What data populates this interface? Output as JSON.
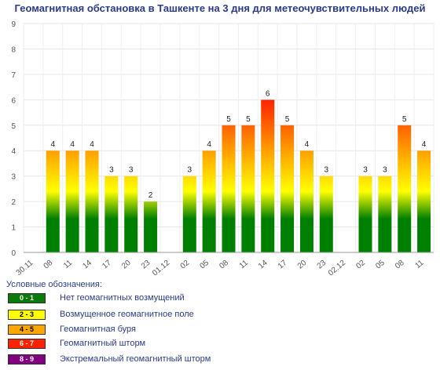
{
  "title": "Геомагнитная обстановка в Ташкенте на 3 дня для метеочувствительных людей",
  "legend": {
    "title": "Условные обозначения:",
    "items": [
      {
        "range": "0 - 1",
        "label": "Нет геомагнитных возмущений",
        "color": "#0a7a0a",
        "text_color": "#ffffff"
      },
      {
        "range": "2 - 3",
        "label": "Возмущенное геомагнитное поле",
        "color": "#ffff00",
        "text_color": "#000000"
      },
      {
        "range": "4 - 5",
        "label": "Геомагнитная буря",
        "color": "#ffa500",
        "text_color": "#000000"
      },
      {
        "range": "6 - 7",
        "label": "Геомагнитный шторм",
        "color": "#ff2200",
        "text_color": "#ffffff"
      },
      {
        "range": "8 - 9",
        "label": "Экстремальный геомагнитный шторм",
        "color": "#800080",
        "text_color": "#ffffff"
      }
    ]
  },
  "chart_data": {
    "type": "bar",
    "title": "Геомагнитная обстановка в Ташкенте на 3 дня для метеочувствительных людей",
    "categories": [
      "30.11",
      "08",
      "11",
      "14",
      "17",
      "20",
      "23",
      "01.12",
      "02",
      "05",
      "08",
      "11",
      "14",
      "17",
      "20",
      "23",
      "02.12",
      "02",
      "05",
      "08",
      "11"
    ],
    "values": [
      null,
      4,
      4,
      4,
      3,
      3,
      2,
      null,
      3,
      4,
      5,
      5,
      6,
      5,
      4,
      3,
      null,
      3,
      3,
      5,
      4
    ],
    "ylim": [
      0,
      9
    ],
    "yticks": [
      "0",
      "1",
      "2",
      "3",
      "4",
      "5",
      "6",
      "7",
      "8",
      "9"
    ],
    "grid": true,
    "colors": {
      "low": "#008000",
      "mid": "#ffff00",
      "high": "#ffa500",
      "top": "#ff2200"
    }
  }
}
